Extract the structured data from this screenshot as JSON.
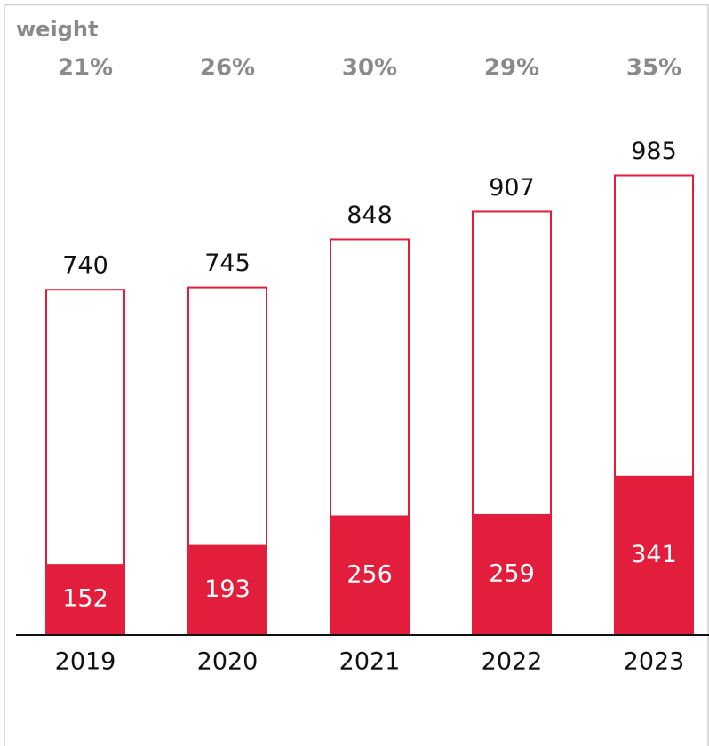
{
  "chart_data": {
    "type": "bar",
    "categories": [
      "2019",
      "2020",
      "2021",
      "2022",
      "2023"
    ],
    "series": [
      {
        "color": "#e31d3c",
        "values": [
          740,
          745,
          848,
          907,
          985
        ]
      },
      {
        "color": "#e31d3c",
        "values": [
          152,
          193,
          256,
          259,
          341
        ]
      }
    ],
    "weight": {
      "label": "weight",
      "values": [
        21,
        26,
        30,
        29,
        35
      ],
      "value_labels": [
        "21%",
        "26%",
        "30%",
        "29%",
        "35%"
      ]
    },
    "ylim": [
      0,
      1300
    ]
  }
}
